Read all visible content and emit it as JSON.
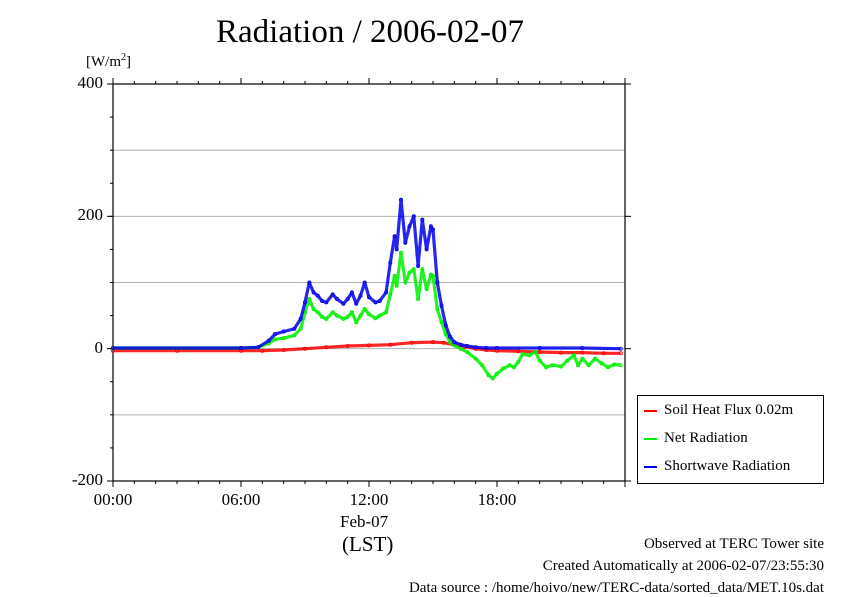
{
  "chart_data": {
    "type": "line",
    "title": "Radiation / 2006-02-07",
    "ylabel_pre": "[W/m",
    "ylabel_sup": "2",
    "ylabel_post": "]",
    "xlabel": "(LST)",
    "x_date_label": "Feb-07",
    "ylim": [
      -200,
      400
    ],
    "xlim": [
      0,
      24
    ],
    "yticks": [
      {
        "value": 400,
        "label": "400"
      },
      {
        "value": 200,
        "label": "200"
      },
      {
        "value": 0,
        "label": "0"
      },
      {
        "value": -200,
        "label": "-200"
      }
    ],
    "xticks": [
      {
        "value": 0,
        "label": "00:00"
      },
      {
        "value": 6,
        "label": "06:00"
      },
      {
        "value": 12,
        "label": "12:00"
      },
      {
        "value": 18,
        "label": "18:00"
      }
    ],
    "grid": true,
    "legend_position": "bottom-right",
    "series": [
      {
        "name": "Soil Heat Flux 0.02m",
        "color": "#ff0000",
        "points": [
          [
            0,
            -3
          ],
          [
            3,
            -3
          ],
          [
            6,
            -3
          ],
          [
            7,
            -3
          ],
          [
            8,
            -2
          ],
          [
            9,
            0
          ],
          [
            10,
            2
          ],
          [
            11,
            4
          ],
          [
            12,
            5
          ],
          [
            13,
            6
          ],
          [
            14,
            9
          ],
          [
            15,
            10
          ],
          [
            15.5,
            9
          ],
          [
            16,
            6
          ],
          [
            16.5,
            3
          ],
          [
            17,
            0
          ],
          [
            17.5,
            -2
          ],
          [
            18,
            -3
          ],
          [
            19,
            -4
          ],
          [
            20,
            -5
          ],
          [
            21,
            -6
          ],
          [
            22,
            -6
          ],
          [
            23,
            -7
          ],
          [
            23.8,
            -7
          ]
        ]
      },
      {
        "name": "Net Radiation",
        "color": "#00ee00",
        "points": [
          [
            0,
            1
          ],
          [
            6,
            1
          ],
          [
            6.8,
            2
          ],
          [
            7.3,
            8
          ],
          [
            7.6,
            14
          ],
          [
            8,
            16
          ],
          [
            8.5,
            20
          ],
          [
            8.8,
            30
          ],
          [
            9,
            55
          ],
          [
            9.2,
            75
          ],
          [
            9.4,
            60
          ],
          [
            9.6,
            55
          ],
          [
            9.8,
            48
          ],
          [
            10,
            45
          ],
          [
            10.3,
            55
          ],
          [
            10.5,
            50
          ],
          [
            10.8,
            45
          ],
          [
            11,
            48
          ],
          [
            11.2,
            55
          ],
          [
            11.4,
            40
          ],
          [
            11.6,
            50
          ],
          [
            11.8,
            60
          ],
          [
            12,
            52
          ],
          [
            12.3,
            46
          ],
          [
            12.5,
            50
          ],
          [
            12.8,
            55
          ],
          [
            13,
            82
          ],
          [
            13.2,
            110
          ],
          [
            13.3,
            95
          ],
          [
            13.5,
            145
          ],
          [
            13.7,
            100
          ],
          [
            13.9,
            115
          ],
          [
            14.1,
            120
          ],
          [
            14.3,
            75
          ],
          [
            14.5,
            120
          ],
          [
            14.7,
            90
          ],
          [
            14.9,
            112
          ],
          [
            15,
            110
          ],
          [
            15.2,
            60
          ],
          [
            15.4,
            40
          ],
          [
            15.6,
            22
          ],
          [
            15.8,
            10
          ],
          [
            16,
            5
          ],
          [
            16.3,
            0
          ],
          [
            16.6,
            -5
          ],
          [
            17,
            -15
          ],
          [
            17.3,
            -25
          ],
          [
            17.6,
            -40
          ],
          [
            17.8,
            -45
          ],
          [
            18,
            -38
          ],
          [
            18.3,
            -30
          ],
          [
            18.6,
            -25
          ],
          [
            18.8,
            -28
          ],
          [
            19,
            -20
          ],
          [
            19.2,
            -8
          ],
          [
            19.5,
            -10
          ],
          [
            19.8,
            -5
          ],
          [
            20,
            -18
          ],
          [
            20.3,
            -28
          ],
          [
            20.6,
            -25
          ],
          [
            21,
            -27
          ],
          [
            21.3,
            -18
          ],
          [
            21.6,
            -10
          ],
          [
            21.8,
            -25
          ],
          [
            22,
            -15
          ],
          [
            22.3,
            -25
          ],
          [
            22.6,
            -15
          ],
          [
            22.9,
            -22
          ],
          [
            23.2,
            -28
          ],
          [
            23.5,
            -24
          ],
          [
            23.8,
            -25
          ]
        ]
      },
      {
        "name": "Shortwave Radiation",
        "color": "#0000ee",
        "points": [
          [
            0,
            1
          ],
          [
            6,
            1
          ],
          [
            6.8,
            2
          ],
          [
            7.3,
            12
          ],
          [
            7.6,
            22
          ],
          [
            8,
            26
          ],
          [
            8.5,
            30
          ],
          [
            8.8,
            45
          ],
          [
            9,
            70
          ],
          [
            9.2,
            100
          ],
          [
            9.4,
            85
          ],
          [
            9.6,
            80
          ],
          [
            9.8,
            72
          ],
          [
            10,
            70
          ],
          [
            10.3,
            82
          ],
          [
            10.5,
            75
          ],
          [
            10.8,
            68
          ],
          [
            11,
            75
          ],
          [
            11.2,
            85
          ],
          [
            11.4,
            68
          ],
          [
            11.6,
            80
          ],
          [
            11.8,
            100
          ],
          [
            12,
            78
          ],
          [
            12.3,
            70
          ],
          [
            12.5,
            72
          ],
          [
            12.8,
            85
          ],
          [
            13,
            130
          ],
          [
            13.2,
            170
          ],
          [
            13.3,
            150
          ],
          [
            13.5,
            225
          ],
          [
            13.7,
            160
          ],
          [
            13.9,
            185
          ],
          [
            14.1,
            200
          ],
          [
            14.3,
            125
          ],
          [
            14.5,
            195
          ],
          [
            14.7,
            150
          ],
          [
            14.9,
            185
          ],
          [
            15,
            180
          ],
          [
            15.2,
            100
          ],
          [
            15.4,
            65
          ],
          [
            15.6,
            35
          ],
          [
            15.8,
            18
          ],
          [
            16,
            10
          ],
          [
            16.3,
            6
          ],
          [
            16.6,
            4
          ],
          [
            17,
            2
          ],
          [
            17.5,
            1
          ],
          [
            18,
            1
          ],
          [
            20,
            1
          ],
          [
            22,
            1
          ],
          [
            23.8,
            0
          ]
        ]
      }
    ]
  },
  "footer": {
    "line1": "Observed at TERC Tower site",
    "line2": "Created Automatically at 2006-02-07/23:55:30",
    "line3": "Data source : /home/hoivo/new/TERC-data/sorted_data/MET.10s.dat"
  }
}
